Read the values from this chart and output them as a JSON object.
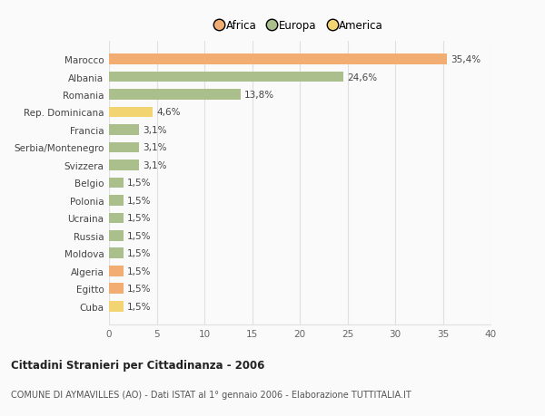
{
  "countries": [
    "Marocco",
    "Albania",
    "Romania",
    "Rep. Dominicana",
    "Francia",
    "Serbia/Montenegro",
    "Svizzera",
    "Belgio",
    "Polonia",
    "Ucraina",
    "Russia",
    "Moldova",
    "Algeria",
    "Egitto",
    "Cuba"
  ],
  "values": [
    35.4,
    24.6,
    13.8,
    4.6,
    3.1,
    3.1,
    3.1,
    1.5,
    1.5,
    1.5,
    1.5,
    1.5,
    1.5,
    1.5,
    1.5
  ],
  "labels": [
    "35,4%",
    "24,6%",
    "13,8%",
    "4,6%",
    "3,1%",
    "3,1%",
    "3,1%",
    "1,5%",
    "1,5%",
    "1,5%",
    "1,5%",
    "1,5%",
    "1,5%",
    "1,5%",
    "1,5%"
  ],
  "continents": [
    "Africa",
    "Europa",
    "Europa",
    "America",
    "Europa",
    "Europa",
    "Europa",
    "Europa",
    "Europa",
    "Europa",
    "Europa",
    "Europa",
    "Africa",
    "Africa",
    "America"
  ],
  "colors": {
    "Africa": "#F2AE72",
    "Europa": "#AABF8C",
    "America": "#F2D472"
  },
  "legend_items": [
    "Africa",
    "Europa",
    "America"
  ],
  "legend_colors": [
    "#F2AE72",
    "#AABF8C",
    "#F2D472"
  ],
  "title": "Cittadini Stranieri per Cittadinanza - 2006",
  "subtitle": "COMUNE DI AYMAVILLES (AO) - Dati ISTAT al 1° gennaio 2006 - Elaborazione TUTTITALIA.IT",
  "xlim": [
    0,
    40
  ],
  "xticks": [
    0,
    5,
    10,
    15,
    20,
    25,
    30,
    35,
    40
  ],
  "bg_color": "#FAFAFA",
  "grid_color": "#E0E0E0"
}
